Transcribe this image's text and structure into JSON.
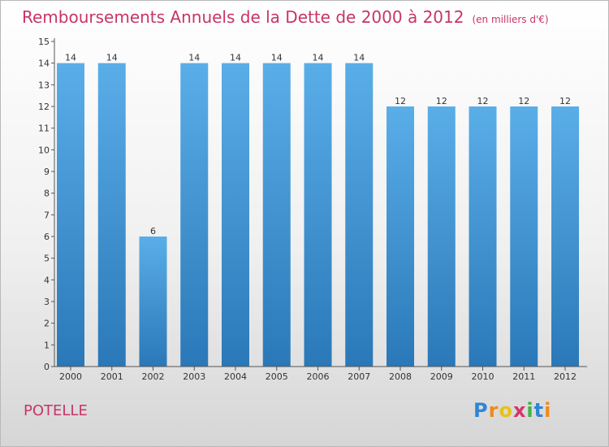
{
  "chart_data": {
    "type": "bar",
    "title": "Remboursements Annuels de la Dette de 2000 à 2012",
    "unit_note": "(en milliers d'€)",
    "categories": [
      "2000",
      "2001",
      "2002",
      "2003",
      "2004",
      "2005",
      "2006",
      "2007",
      "2008",
      "2009",
      "2010",
      "2011",
      "2012"
    ],
    "values": [
      14,
      14,
      6,
      14,
      14,
      14,
      14,
      14,
      12,
      12,
      12,
      12,
      12
    ],
    "ylim": [
      0,
      15
    ],
    "yticks": [
      0,
      1,
      2,
      3,
      4,
      5,
      6,
      7,
      8,
      9,
      10,
      11,
      12,
      13,
      14,
      15
    ],
    "xlabel": "",
    "ylabel": "",
    "grid": false,
    "colors": {
      "bar_top": "#5aaee8",
      "bar_bottom": "#2a78b8",
      "accent": "#c8346a"
    }
  },
  "footer": {
    "city": "POTELLE",
    "brand_letters": [
      {
        "ch": "P",
        "color": "#2e86d4"
      },
      {
        "ch": "r",
        "color": "#f08a1c"
      },
      {
        "ch": "o",
        "color": "#e6c21a"
      },
      {
        "ch": "x",
        "color": "#d6336c"
      },
      {
        "ch": "i",
        "color": "#44b046"
      },
      {
        "ch": "t",
        "color": "#2e86d4"
      },
      {
        "ch": "i",
        "color": "#f08a1c"
      }
    ]
  }
}
